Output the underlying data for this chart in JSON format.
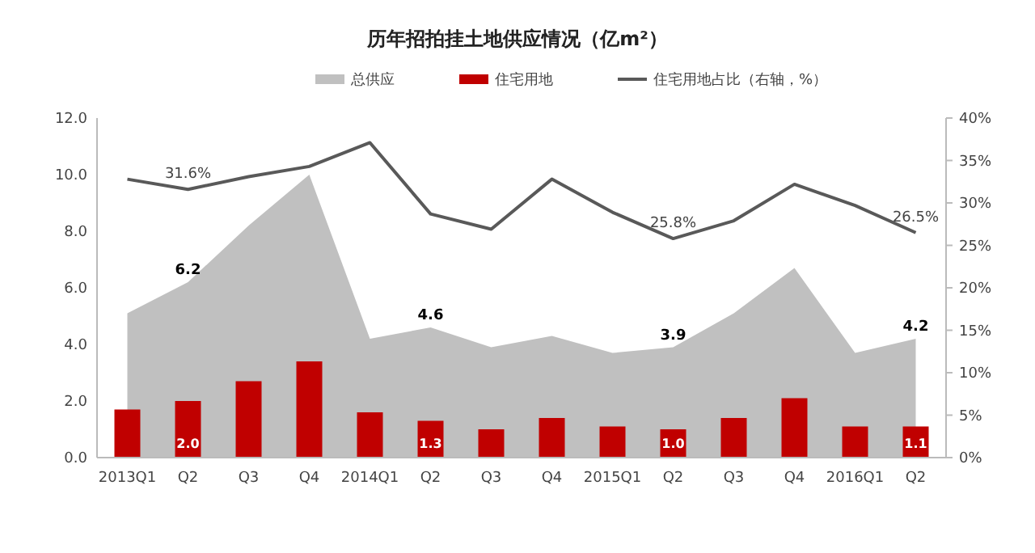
{
  "chart_data": {
    "type": "bar",
    "title": "历年招拍挂土地供应情况（亿m²）",
    "categories": [
      "2013Q1",
      "Q2",
      "Q3",
      "Q4",
      "2014Q1",
      "Q2",
      "Q3",
      "Q4",
      "2015Q1",
      "Q2",
      "Q3",
      "Q4",
      "2016Q1",
      "Q2"
    ],
    "series": [
      {
        "name": "总供应",
        "type": "area",
        "color": "#c0c0c0",
        "values": [
          5.1,
          6.2,
          8.2,
          10.0,
          4.2,
          4.6,
          3.9,
          4.3,
          3.7,
          3.9,
          5.1,
          6.7,
          3.7,
          4.2
        ],
        "value_labels": [
          null,
          "6.2",
          null,
          null,
          null,
          "4.6",
          null,
          null,
          null,
          "3.9",
          null,
          null,
          null,
          "4.2"
        ]
      },
      {
        "name": "住宅用地",
        "color": "#c00000",
        "values": [
          1.7,
          2.0,
          2.7,
          3.4,
          1.6,
          1.3,
          1.0,
          1.4,
          1.1,
          1.0,
          1.4,
          2.1,
          1.1,
          1.1
        ],
        "value_labels": [
          null,
          "2.0",
          null,
          null,
          null,
          "1.3",
          null,
          null,
          null,
          "1.0",
          null,
          null,
          null,
          "1.1"
        ]
      },
      {
        "name": "住宅用地占比（右轴，%）",
        "type": "line",
        "axis": "y2",
        "color": "#595959",
        "values": [
          32.8,
          31.6,
          33.1,
          34.3,
          37.1,
          28.7,
          26.9,
          32.8,
          28.9,
          25.8,
          27.9,
          32.2,
          29.7,
          26.5
        ],
        "value_labels": [
          null,
          "31.6%",
          null,
          null,
          null,
          null,
          null,
          null,
          null,
          "25.8%",
          null,
          null,
          null,
          "26.5%"
        ]
      }
    ],
    "ylim": [
      0,
      12
    ],
    "yticks": [
      {
        "value": 0,
        "label": "0.0"
      },
      {
        "value": 2,
        "label": "2.0"
      },
      {
        "value": 4,
        "label": "4.0"
      },
      {
        "value": 6,
        "label": "6.0"
      },
      {
        "value": 8,
        "label": "8.0"
      },
      {
        "value": 10,
        "label": "10.0"
      },
      {
        "value": 12,
        "label": "12.0"
      }
    ],
    "y2lim": [
      0,
      40
    ],
    "y2ticks": [
      {
        "value": 0,
        "label": "0%"
      },
      {
        "value": 5,
        "label": "5%"
      },
      {
        "value": 10,
        "label": "10%"
      },
      {
        "value": 15,
        "label": "15%"
      },
      {
        "value": 20,
        "label": "20%"
      },
      {
        "value": 25,
        "label": "25%"
      },
      {
        "value": 30,
        "label": "30%"
      },
      {
        "value": 35,
        "label": "35%"
      },
      {
        "value": 40,
        "label": "40%"
      }
    ],
    "legend": "top",
    "grid": false
  }
}
